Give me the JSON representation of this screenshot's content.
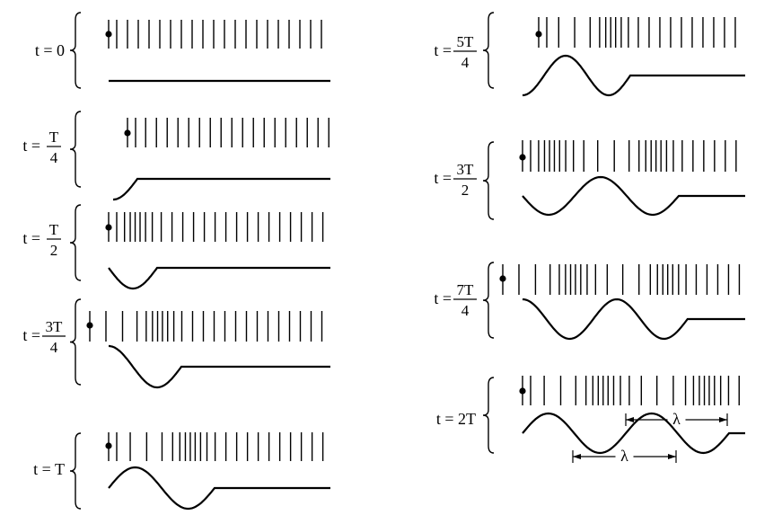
{
  "figure": {
    "panels": [
      {
        "label_prefix": "t = ",
        "label": "0",
        "numerator": "",
        "denominator": "",
        "phase_quarters": 0
      },
      {
        "label_prefix": "t = ",
        "label": "",
        "numerator": "T",
        "denominator": "4",
        "phase_quarters": 1
      },
      {
        "label_prefix": "t = ",
        "label": "",
        "numerator": "T",
        "denominator": "2",
        "phase_quarters": 2
      },
      {
        "label_prefix": "t = ",
        "label": "",
        "numerator": "3T",
        "denominator": "4",
        "phase_quarters": 3
      },
      {
        "label_prefix": "t = ",
        "label": "T",
        "numerator": "",
        "denominator": "",
        "phase_quarters": 4
      },
      {
        "label_prefix": "t = ",
        "label": "",
        "numerator": "5T",
        "denominator": "4",
        "phase_quarters": 5
      },
      {
        "label_prefix": "t = ",
        "label": "",
        "numerator": "3T",
        "denominator": "2",
        "phase_quarters": 6
      },
      {
        "label_prefix": "t = ",
        "label": "",
        "numerator": "7T",
        "denominator": "4",
        "phase_quarters": 7
      },
      {
        "label_prefix": "t = ",
        "label": "2T",
        "numerator": "",
        "denominator": "",
        "phase_quarters": 8
      }
    ],
    "wavelength_label": "λ"
  }
}
